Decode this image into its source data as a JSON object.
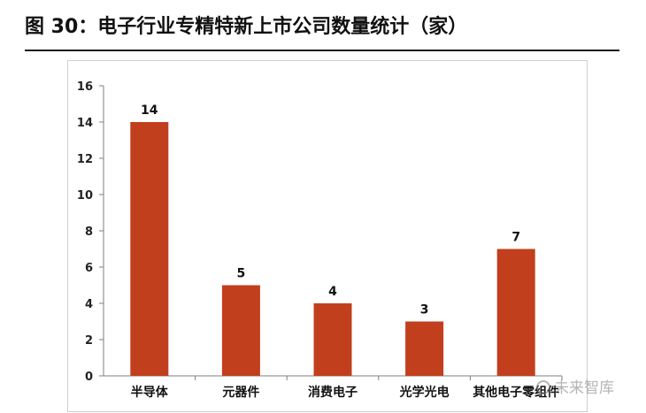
{
  "header": {
    "title": "图 30：电子行业专精特新上市公司数量统计（家）"
  },
  "watermark": {
    "text": "未来智库"
  },
  "colors": {
    "bar": "#C23F1E",
    "axis": "#7f7f7f"
  },
  "chart_data": {
    "type": "bar",
    "title": "",
    "xlabel": "",
    "ylabel": "",
    "categories": [
      "半导体",
      "元器件",
      "消费电子",
      "光学光电",
      "其他电子零组件"
    ],
    "values": [
      14,
      5,
      4,
      3,
      7
    ],
    "ylim": [
      0,
      16
    ],
    "yticks": [
      0,
      2,
      4,
      6,
      8,
      10,
      12,
      14,
      16
    ],
    "grid": false,
    "legend": "none",
    "data_labels": true
  }
}
